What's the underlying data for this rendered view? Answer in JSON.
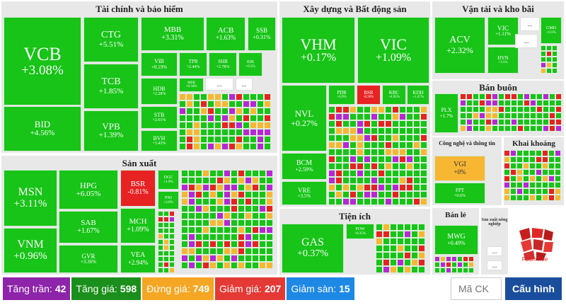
{
  "sectors": [
    {
      "name": "Tài chính và bảo hiểm"
    },
    {
      "name": "Xây dựng và Bất động sản"
    },
    {
      "name": "Vận tải và kho bãi"
    },
    {
      "name": "Sản xuất"
    },
    {
      "name": "Bán buôn"
    },
    {
      "name": "Công nghệ và thông tin"
    },
    {
      "name": "Khai khoáng"
    },
    {
      "name": "Tiện ích"
    },
    {
      "name": "Bán lẻ"
    },
    {
      "name": "Sản xuất nông nghiệp"
    }
  ],
  "tiles": [
    {
      "t": "VCB",
      "c": "+3.08%",
      "k": "g"
    },
    {
      "t": "BID",
      "c": "+4.56%",
      "k": "g"
    },
    {
      "t": "CTG",
      "c": "+5.51%",
      "k": "g"
    },
    {
      "t": "TCB",
      "c": "+1.85%",
      "k": "g"
    },
    {
      "t": "VPB",
      "c": "+1.39%",
      "k": "g"
    },
    {
      "t": "MBB",
      "c": "+3.31%",
      "k": "g"
    },
    {
      "t": "ACB",
      "c": "+1.63%",
      "k": "g"
    },
    {
      "t": "SSB",
      "c": "+0.31%",
      "k": "g"
    },
    {
      "t": "VIB",
      "c": "+0.19%",
      "k": "g"
    },
    {
      "t": "TPB",
      "c": "+2.44%",
      "k": "g"
    },
    {
      "t": "SHB",
      "c": "+2.78%",
      "k": "g"
    },
    {
      "t": "EIB",
      "c": "+0.3%",
      "k": "g"
    },
    {
      "t": "HDB",
      "c": "+2.28%",
      "k": "g"
    },
    {
      "t": "MSB",
      "c": "+0.34%",
      "k": "g"
    },
    {
      "t": "STB",
      "c": "+2.61%",
      "k": "g"
    },
    {
      "t": "BVH",
      "c": "+3.43%",
      "k": "g"
    },
    {
      "t": "VHM",
      "c": "+0.17%",
      "k": "g"
    },
    {
      "t": "VIC",
      "c": "+1.09%",
      "k": "g"
    },
    {
      "t": "NVL",
      "c": "+0.27%",
      "k": "g"
    },
    {
      "t": "PDR",
      "c": "+6.9%",
      "k": "g"
    },
    {
      "t": "BSR",
      "c": "-8.28%",
      "k": "r"
    },
    {
      "t": "KBC",
      "c": "+4.91%",
      "k": "g"
    },
    {
      "t": "KDH",
      "c": "+1.47%",
      "k": "g"
    },
    {
      "t": "BCM",
      "c": "+2.59%",
      "k": "g"
    },
    {
      "t": "VRE",
      "c": "+3.5%",
      "k": "g"
    },
    {
      "t": "ACV",
      "c": "+2.32%",
      "k": "g"
    },
    {
      "t": "VJC",
      "c": "+1.11%",
      "k": "g"
    },
    {
      "t": "HVN",
      "c": "+3.5%",
      "k": "g"
    },
    {
      "t": "GMD",
      "c": "+0.5%",
      "k": "g"
    },
    {
      "t": "MSN",
      "c": "+3.11%",
      "k": "g"
    },
    {
      "t": "VNM",
      "c": "+0.96%",
      "k": "g"
    },
    {
      "t": "HPG",
      "c": "+6.05%",
      "k": "g"
    },
    {
      "t": "SAB",
      "c": "+1.67%",
      "k": "g"
    },
    {
      "t": "GVR",
      "c": "+3.36%",
      "k": "g"
    },
    {
      "t": "BSR",
      "c": "-0.81%",
      "k": "r"
    },
    {
      "t": "MCH",
      "c": "+1.09%",
      "k": "g"
    },
    {
      "t": "VEA",
      "c": "+2.94%",
      "k": "g"
    },
    {
      "t": "DGC",
      "c": "+1.9%",
      "k": "g"
    },
    {
      "t": "PNJ",
      "c": "+2.0%",
      "k": "g"
    },
    {
      "t": "PLX",
      "c": "+1.7%",
      "k": "g"
    },
    {
      "t": "VGI",
      "c": "+0%",
      "k": "y"
    },
    {
      "t": "FPT",
      "c": "+0.6%",
      "k": "g"
    },
    {
      "t": "GAS",
      "c": "+0.37%",
      "k": "g"
    },
    {
      "t": "POW",
      "c": "+0.35%",
      "k": "g"
    },
    {
      "t": "MWG",
      "c": "+0.49%",
      "k": "g"
    }
  ],
  "more_label": "...",
  "colors": {
    "up": "#17c417",
    "down": "#e72222",
    "ref": "#f7b733",
    "ceiling": "#b827d4",
    "floor": "#1a73e8"
  },
  "legend": [
    {
      "label": "Tăng trần:",
      "value": "42",
      "color": "#8e24aa"
    },
    {
      "label": "Tăng giá:",
      "value": "598",
      "color": "#1b8f1b"
    },
    {
      "label": "Đứng giá:",
      "value": "749",
      "color": "#f5a623"
    },
    {
      "label": "Giảm giá:",
      "value": "207",
      "color": "#e53935"
    },
    {
      "label": "Giảm sàn:",
      "value": "15",
      "color": "#1e88e5"
    }
  ],
  "search": {
    "placeholder": "Mã CK"
  },
  "config_label": "Cấu hình",
  "logo_text": "FoamTree"
}
